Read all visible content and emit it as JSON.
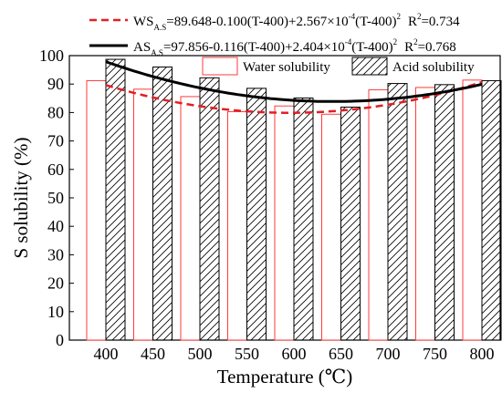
{
  "chart_data": {
    "type": "bar",
    "xlabel": "Temperature (℃)",
    "ylabel": "S solubility (%)",
    "ylim": [
      0,
      100
    ],
    "yticks": [
      0,
      10,
      20,
      30,
      40,
      50,
      60,
      70,
      80,
      90,
      100
    ],
    "categories": [
      "400",
      "450",
      "500",
      "550",
      "600",
      "650",
      "700",
      "750",
      "800"
    ],
    "series": [
      {
        "name": "Water solubility",
        "color": "#ff3b3b",
        "pattern": "none",
        "values": [
          91.2,
          88.2,
          85.6,
          80.3,
          82.3,
          79.4,
          88.0,
          88.8,
          91.4
        ]
      },
      {
        "name": "Acid solubility",
        "color": "#000000",
        "pattern": "hatch",
        "values": [
          98.7,
          96.0,
          92.2,
          88.5,
          85.1,
          81.9,
          90.2,
          89.8,
          91.2
        ]
      }
    ],
    "fits": [
      {
        "label_main": "WS",
        "label_sub": "A.S",
        "formula_a": "=89.648-0.100(T-400)+2.567×10",
        "formula_exp": "-4",
        "formula_b": "(T-400)",
        "formula_sq": "2",
        "r2_base": "R",
        "r2_sup": "2",
        "r2_val": "=0.734",
        "style": "dashed",
        "color": "#e31e24",
        "intercept": 89.648,
        "linear": -0.1,
        "quadratic": 0.0002567,
        "x0": 400
      },
      {
        "label_main": "AS",
        "label_sub": "A.S",
        "formula_a": "=97.856-0.116(T-400)+2.404×10",
        "formula_exp": "-4",
        "formula_b": "(T-400)",
        "formula_sq": "2",
        "r2_base": "R",
        "r2_sup": "2",
        "r2_val": "=0.768",
        "style": "solid",
        "color": "#000000",
        "intercept": 97.856,
        "linear": -0.116,
        "quadratic": 0.0002404,
        "x0": 400
      }
    ],
    "legend_position": "top-right",
    "grid": false
  }
}
